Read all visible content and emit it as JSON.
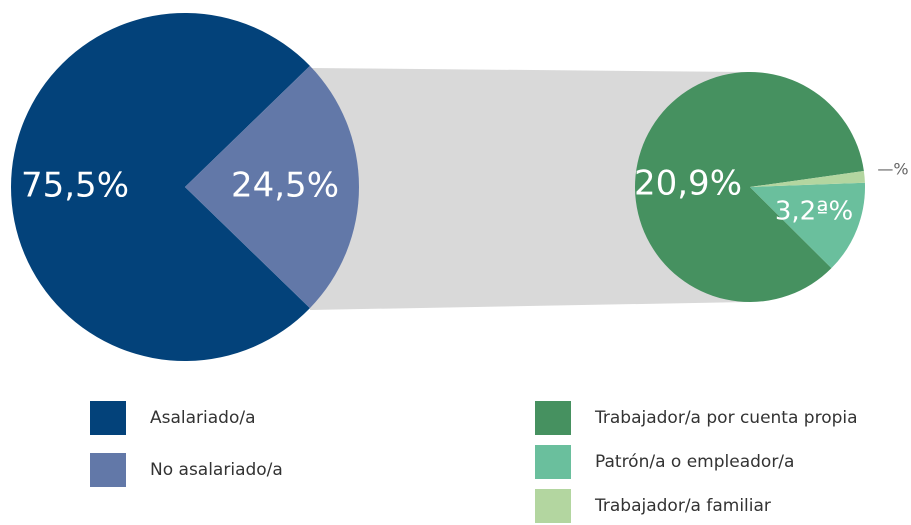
{
  "chart_data": [
    {
      "type": "pie",
      "categories": [
        "Asalariado/a",
        "No asalariado/a"
      ],
      "values": [
        75.5,
        24.5
      ],
      "value_labels": [
        "75,5%",
        "24,5%"
      ],
      "colors": [
        "#03427a",
        "#6278a8"
      ]
    },
    {
      "type": "pie",
      "categories": [
        "Trabajador/a por cuenta propia",
        "Patrón/a o empleador/a",
        "Trabajador/a familiar"
      ],
      "values": [
        20.9,
        3.2,
        0.4
      ],
      "value_labels": [
        "20,9%",
        "3,2ª%",
        "—%"
      ],
      "colors": [
        "#469160",
        "#6abf9d",
        "#b3d6a0"
      ]
    }
  ]
}
